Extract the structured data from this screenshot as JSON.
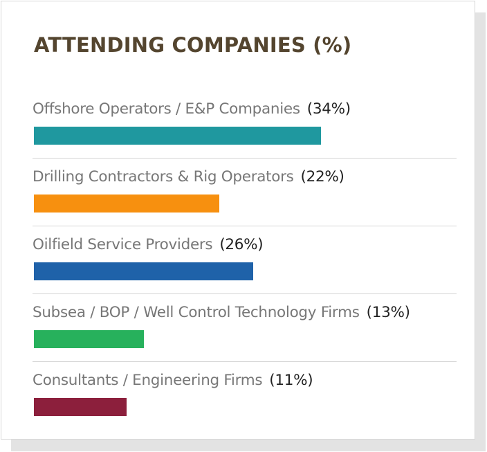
{
  "chart_data": {
    "type": "bar",
    "orientation": "horizontal",
    "title": "ATTENDING COMPANIES (%)",
    "categories": [
      "Offshore Operators / E&P Companies",
      "Drilling Contractors & Rig Operators",
      "Oilfield Service Providers",
      "Subsea / BOP / Well Control Technology Firms",
      "Consultants / Engineering Firms"
    ],
    "values": [
      34,
      22,
      26,
      13,
      11
    ],
    "value_labels": [
      "(34%)",
      "(22%)",
      "(26%)",
      "(13%)",
      "(11%)"
    ],
    "colors": [
      "#1f989f",
      "#f7900f",
      "#1f62a9",
      "#27b15c",
      "#8c1f3c"
    ],
    "unit": "%",
    "xlim": [
      0,
      50
    ],
    "grid": false,
    "legend": "none"
  }
}
